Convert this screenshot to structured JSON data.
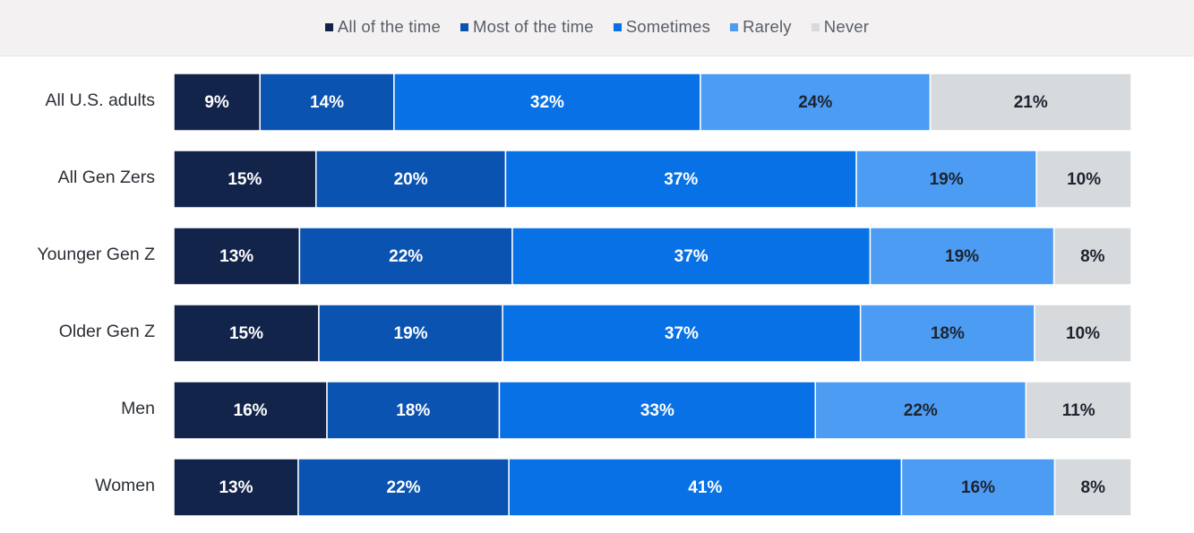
{
  "chart_data": {
    "type": "bar",
    "orientation": "horizontal",
    "stacked": true,
    "percent_stacked": true,
    "categories": [
      "All U.S. adults",
      "All Gen Zers",
      "Younger Gen Z",
      "Older Gen Z",
      "Men",
      "Women"
    ],
    "series": [
      {
        "name": "All of the time",
        "color": "#13244b",
        "values": [
          9,
          15,
          13,
          15,
          16,
          13
        ],
        "labels": [
          "9%",
          "15%",
          "13%",
          "15%",
          "16%",
          "13%"
        ]
      },
      {
        "name": "Most of the time",
        "color": "#0a53b0",
        "values": [
          14,
          20,
          22,
          19,
          18,
          22
        ],
        "labels": [
          "14%",
          "20%",
          "22%",
          "19%",
          "18%",
          "22%"
        ]
      },
      {
        "name": "Sometimes",
        "color": "#0971e6",
        "values": [
          32,
          37,
          37,
          37,
          33,
          41
        ],
        "labels": [
          "32%",
          "37%",
          "37%",
          "37%",
          "33%",
          "41%"
        ]
      },
      {
        "name": "Rarely",
        "color": "#4d9cf4",
        "values": [
          24,
          19,
          19,
          18,
          22,
          16
        ],
        "labels": [
          "24%",
          "19%",
          "19%",
          "18%",
          "22%",
          "16%"
        ]
      },
      {
        "name": "Never",
        "color": "#d7dadc",
        "values": [
          21,
          10,
          8,
          10,
          11,
          8
        ],
        "labels": [
          "21%",
          "10%",
          "8%",
          "10%",
          "11%",
          "8%"
        ]
      }
    ],
    "legend_position": "top-center",
    "grid": false
  }
}
